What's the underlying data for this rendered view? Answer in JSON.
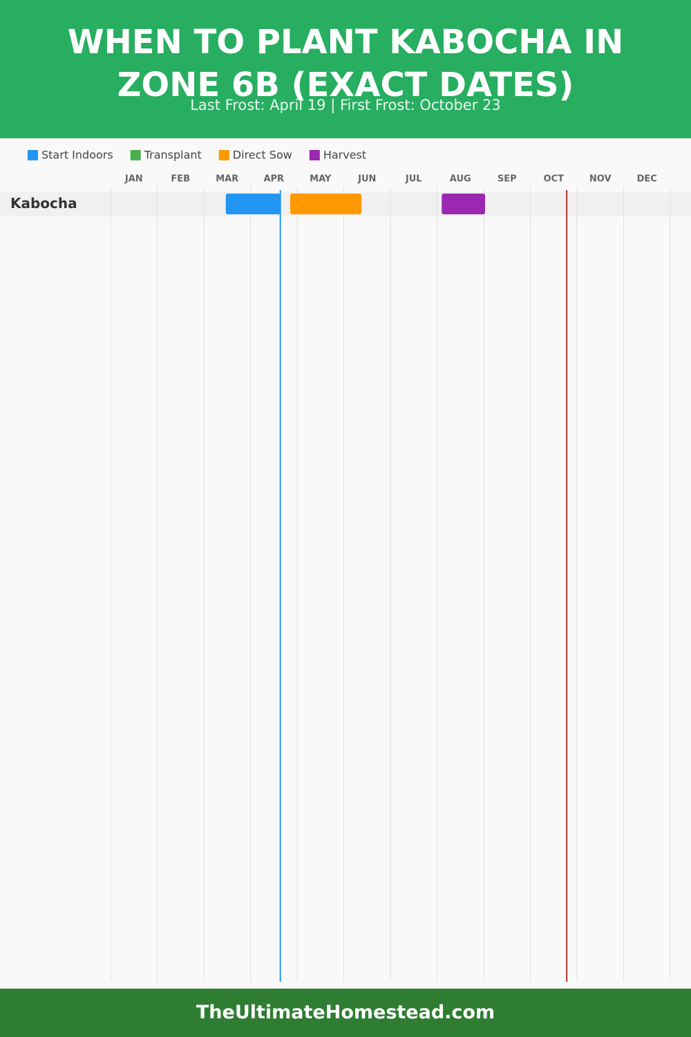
{
  "chart_data": {
    "type": "gantt",
    "title": "WHEN TO PLANT KABOCHA IN ZONE 6B (EXACT DATES)",
    "subtitle": "Last Frost: April 19 | First Frost: October 23",
    "footer": "TheUltimateHomestead.com",
    "categories": [
      "Kabocha"
    ],
    "months": [
      "JAN",
      "FEB",
      "MAR",
      "APR",
      "MAY",
      "JUN",
      "JUL",
      "AUG",
      "SEP",
      "OCT",
      "NOV",
      "DEC"
    ],
    "xlim": [
      0,
      12
    ],
    "xticks": [
      0,
      1,
      2,
      3,
      4,
      5,
      6,
      7,
      8,
      9,
      10,
      11,
      12
    ],
    "grid": true,
    "series": [
      {
        "name": "Start Indoors",
        "color": "#2196f3",
        "start": [
          2.47
        ],
        "end": [
          3.64
        ]
      },
      {
        "name": "Transplant",
        "color": "#4caf50",
        "start": [
          null
        ],
        "end": [
          null
        ]
      },
      {
        "name": "Direct Sow",
        "color": "#ff9800",
        "start": [
          3.85
        ],
        "end": [
          5.38
        ]
      },
      {
        "name": "Harvest",
        "color": "#9c27b0",
        "start": [
          7.1
        ],
        "end": [
          8.03
        ]
      }
    ],
    "markers": [
      {
        "value": 3.64,
        "color": "#2196f3"
      },
      {
        "value": 9.78,
        "color": "#a93226"
      }
    ]
  }
}
